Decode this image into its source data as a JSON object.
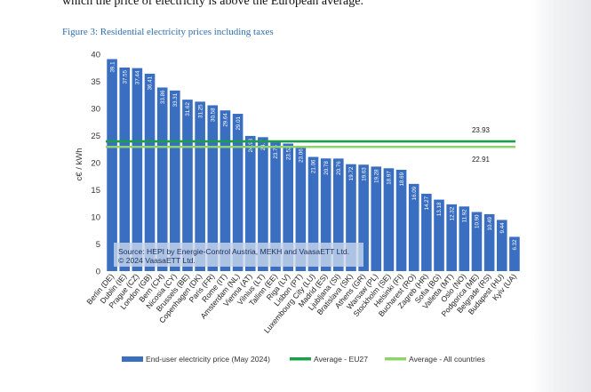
{
  "intro_text": "which the price of electricity is above the European average.",
  "figure_caption": "Figure 3: Residential electricity prices including taxes",
  "colors": {
    "bar": "#3a6ec1",
    "avg_eu27": "#1e9e4a",
    "avg_all": "#8ed36b",
    "caption": "#2e6fb0"
  },
  "chart_data": {
    "type": "bar",
    "title": "",
    "xlabel": "",
    "ylabel": "c€ / kWh",
    "ylim": [
      0,
      40
    ],
    "yticks": [
      0,
      5,
      10,
      15,
      20,
      25,
      30,
      35,
      40
    ],
    "grid": false,
    "legend_position": "bottom",
    "categories": [
      "Berlin (DE)",
      "Dublin (IE)",
      "Prague (CZ)",
      "London (GB)",
      "Bern (CH)",
      "Nicosia (CY)",
      "Brussels (BE)",
      "Copenhagen (DK)",
      "Paris (FR)",
      "Rome (IT)",
      "Amsterdam (NL)",
      "Vienna (AT)",
      "Vilnius (LT)",
      "Tallinn (EE)",
      "Riga (LV)",
      "Lisbon (PT)",
      "Luxembourg City (LU)",
      "Madrid (ES)",
      "Ljubljana (SI)",
      "Bratislava (SK)",
      "Athens (GR)",
      "Warsaw (PL)",
      "Stockholm (SE)",
      "Helsinki (FI)",
      "Bucharest (RO)",
      "Zagreb (HR)",
      "Sofia (BG)",
      "Valletta (MT)",
      "Oslo (NO)",
      "Podgorica (ME)",
      "Belgrade (RS)",
      "Budapest (HU)",
      "Kyiv (UA)"
    ],
    "series": [
      {
        "name": "End-user electricity price (May 2024)",
        "values": [
          39.1,
          37.55,
          37.44,
          36.41,
          33.86,
          33.31,
          31.62,
          31.25,
          30.58,
          29.64,
          29.01,
          24.93,
          24.7,
          23.75,
          23.52,
          23.06,
          21.06,
          20.78,
          20.76,
          19.72,
          19.63,
          19.28,
          18.97,
          18.69,
          16.09,
          14.27,
          13.18,
          12.32,
          11.92,
          10.9,
          10.49,
          9.44,
          6.32
        ],
        "labels": [
          "39.1",
          "37.55",
          "37.44",
          "36.41",
          "33.86",
          "33.31",
          "31.62",
          "31.25",
          "30.58",
          "29.64",
          "29.01",
          "24.93",
          "24.7",
          "23.75",
          "23.52",
          "23.06",
          "21.06",
          "20.78",
          "20.76",
          "19.72",
          "19.63",
          "19.28",
          "18.97",
          "18.69",
          "16.09",
          "14.27",
          "13.18",
          "12.32",
          "11.92",
          "10.90",
          "10.49",
          "9.44",
          "6.32"
        ]
      }
    ],
    "averages": [
      {
        "name": "Average - EU27",
        "value": 23.93,
        "label": "23.93",
        "color": "#1e9e4a"
      },
      {
        "name": "Average - All countries",
        "value": 22.91,
        "label": "22.91",
        "color": "#8ed36b"
      }
    ],
    "source_lines": [
      "Source: HEPI by Energie-Control Austria, MEKH and VaasaETT Ltd.",
      "© 2024 VaasaETT Ltd."
    ]
  }
}
